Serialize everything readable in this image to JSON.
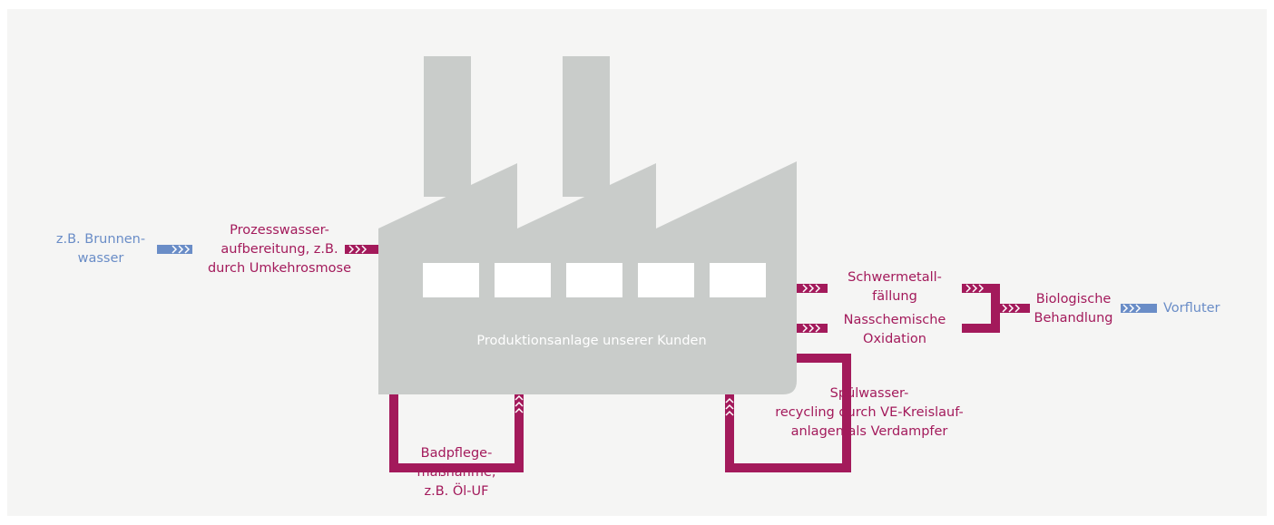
{
  "source": {
    "lines": [
      "z.B. Brunnen-",
      "wasser"
    ]
  },
  "pretreatment": {
    "lines": [
      "Prozesswasser-",
      "aufbereitung, z.B.",
      "durch Umkehrosmose"
    ]
  },
  "plant": {
    "label": "Produktionsanlage unserer Kunden"
  },
  "bath_care": {
    "lines": [
      "Badpflege-",
      "maßnahme,",
      "z.B. Öl-UF"
    ]
  },
  "rinse_recycling": {
    "lines": [
      "Spülwasser-",
      "recycling durch VE-Kreislauf-",
      "anlagen als Verdampfer"
    ]
  },
  "heavy_metal": {
    "lines": [
      "Schwermetall-",
      "fällung"
    ]
  },
  "oxidation": {
    "lines": [
      "Nasschemische",
      "Oxidation"
    ]
  },
  "biological": {
    "lines": [
      "Biologische",
      "Behandlung"
    ]
  },
  "outfall": {
    "label": "Vorfluter"
  }
}
